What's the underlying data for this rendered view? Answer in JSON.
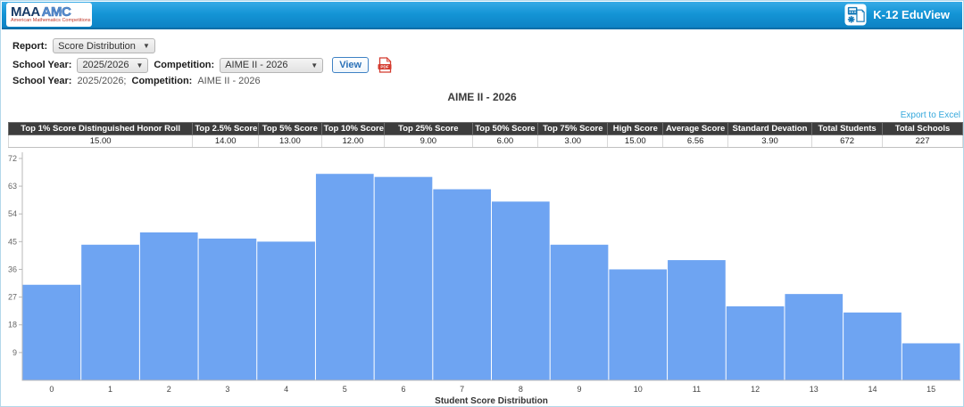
{
  "header": {
    "logo_maa": "MAA",
    "logo_amc": "AMC",
    "logo_tagline": "American Mathematics Competitions",
    "app_title": "K-12 EduView"
  },
  "filters": {
    "report_label": "Report:",
    "report_value": "Score Distribution",
    "school_year_label": "School Year:",
    "school_year_value": "2025/2026",
    "competition_label": "Competition:",
    "competition_value": "AIME II - 2026",
    "view_button": "View"
  },
  "summary": {
    "school_year_label": "School Year:",
    "school_year_value": "2025/2026;",
    "competition_label": "Competition:",
    "competition_value": "AIME II - 2026"
  },
  "report": {
    "title": "AIME II - 2026",
    "export_link": "Export to Excel"
  },
  "stats_table": {
    "columns": [
      "Top 1% Score Distinguished Honor Roll",
      "Top 2.5% Score",
      "Top 5% Score",
      "Top 10% Score",
      "Top 25% Score",
      "Top 50% Score",
      "Top 75% Score",
      "High Score",
      "Average Score",
      "Standard Devation",
      "Total Students",
      "Total Schools"
    ],
    "values": [
      "15.00",
      "14.00",
      "13.00",
      "12.00",
      "9.00",
      "6.00",
      "3.00",
      "15.00",
      "6.56",
      "3.90",
      "672",
      "227"
    ]
  },
  "chart_data": {
    "type": "bar",
    "title": "AIME II - 2026",
    "categories": [
      "0",
      "1",
      "2",
      "3",
      "4",
      "5",
      "6",
      "7",
      "8",
      "9",
      "10",
      "11",
      "12",
      "13",
      "14",
      "15"
    ],
    "values": [
      31,
      44,
      48,
      46,
      45,
      67,
      66,
      62,
      58,
      44,
      36,
      39,
      24,
      28,
      22,
      12
    ],
    "xlabel": "Student Score Distribution",
    "ylabel": "",
    "yticks": [
      9,
      18,
      27,
      36,
      45,
      54,
      63,
      72
    ],
    "ylim": [
      0,
      74
    ],
    "grid": false,
    "legend": false,
    "bar_color": "#6ea4f2",
    "axis_color": "#b8b8b8",
    "tick_label_color": "#666666",
    "x_label_color": "#444444"
  },
  "colors": {
    "header_accent": "#0d82c4",
    "link": "#35a8dc",
    "table_header_bg": "#3d3d3d",
    "pdf_red": "#d43b2f"
  }
}
